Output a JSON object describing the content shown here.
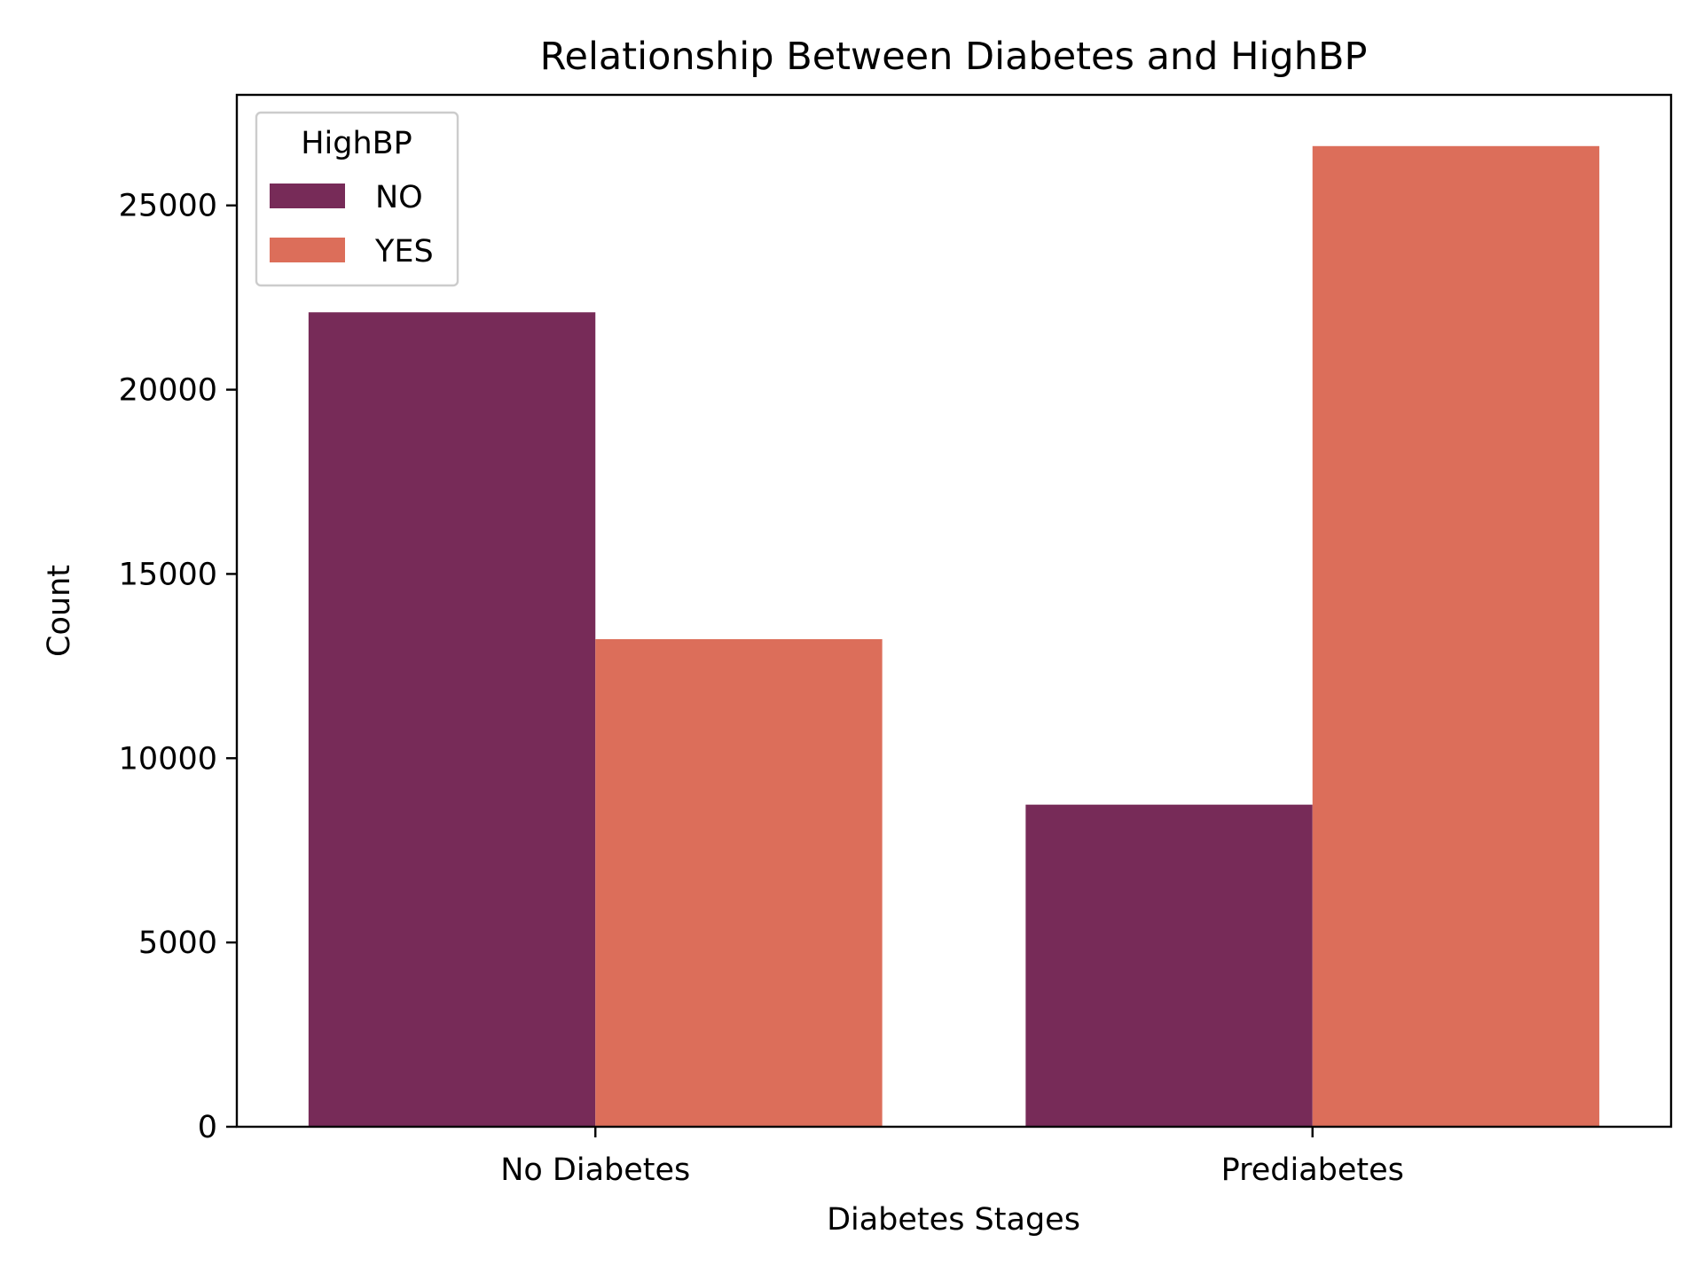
{
  "chart_data": {
    "type": "bar",
    "title": "Relationship Between Diabetes and HighBP",
    "xlabel": "Diabetes Stages",
    "ylabel": "Count",
    "categories": [
      "No Diabetes",
      "Prediabetes"
    ],
    "series": [
      {
        "name": "NO",
        "values": [
          22100,
          8740
        ],
        "color": "#772b58"
      },
      {
        "name": "YES",
        "values": [
          13230,
          26610
        ],
        "color": "#dc6e5a"
      }
    ],
    "ylim": [
      0,
      28000
    ],
    "yticks": [
      0,
      5000,
      10000,
      15000,
      20000,
      25000
    ],
    "ytick_labels": [
      "0",
      "5000",
      "10000",
      "15000",
      "20000",
      "25000"
    ],
    "grid": false,
    "legend": {
      "title": "HighBP",
      "position": "top-left"
    }
  }
}
